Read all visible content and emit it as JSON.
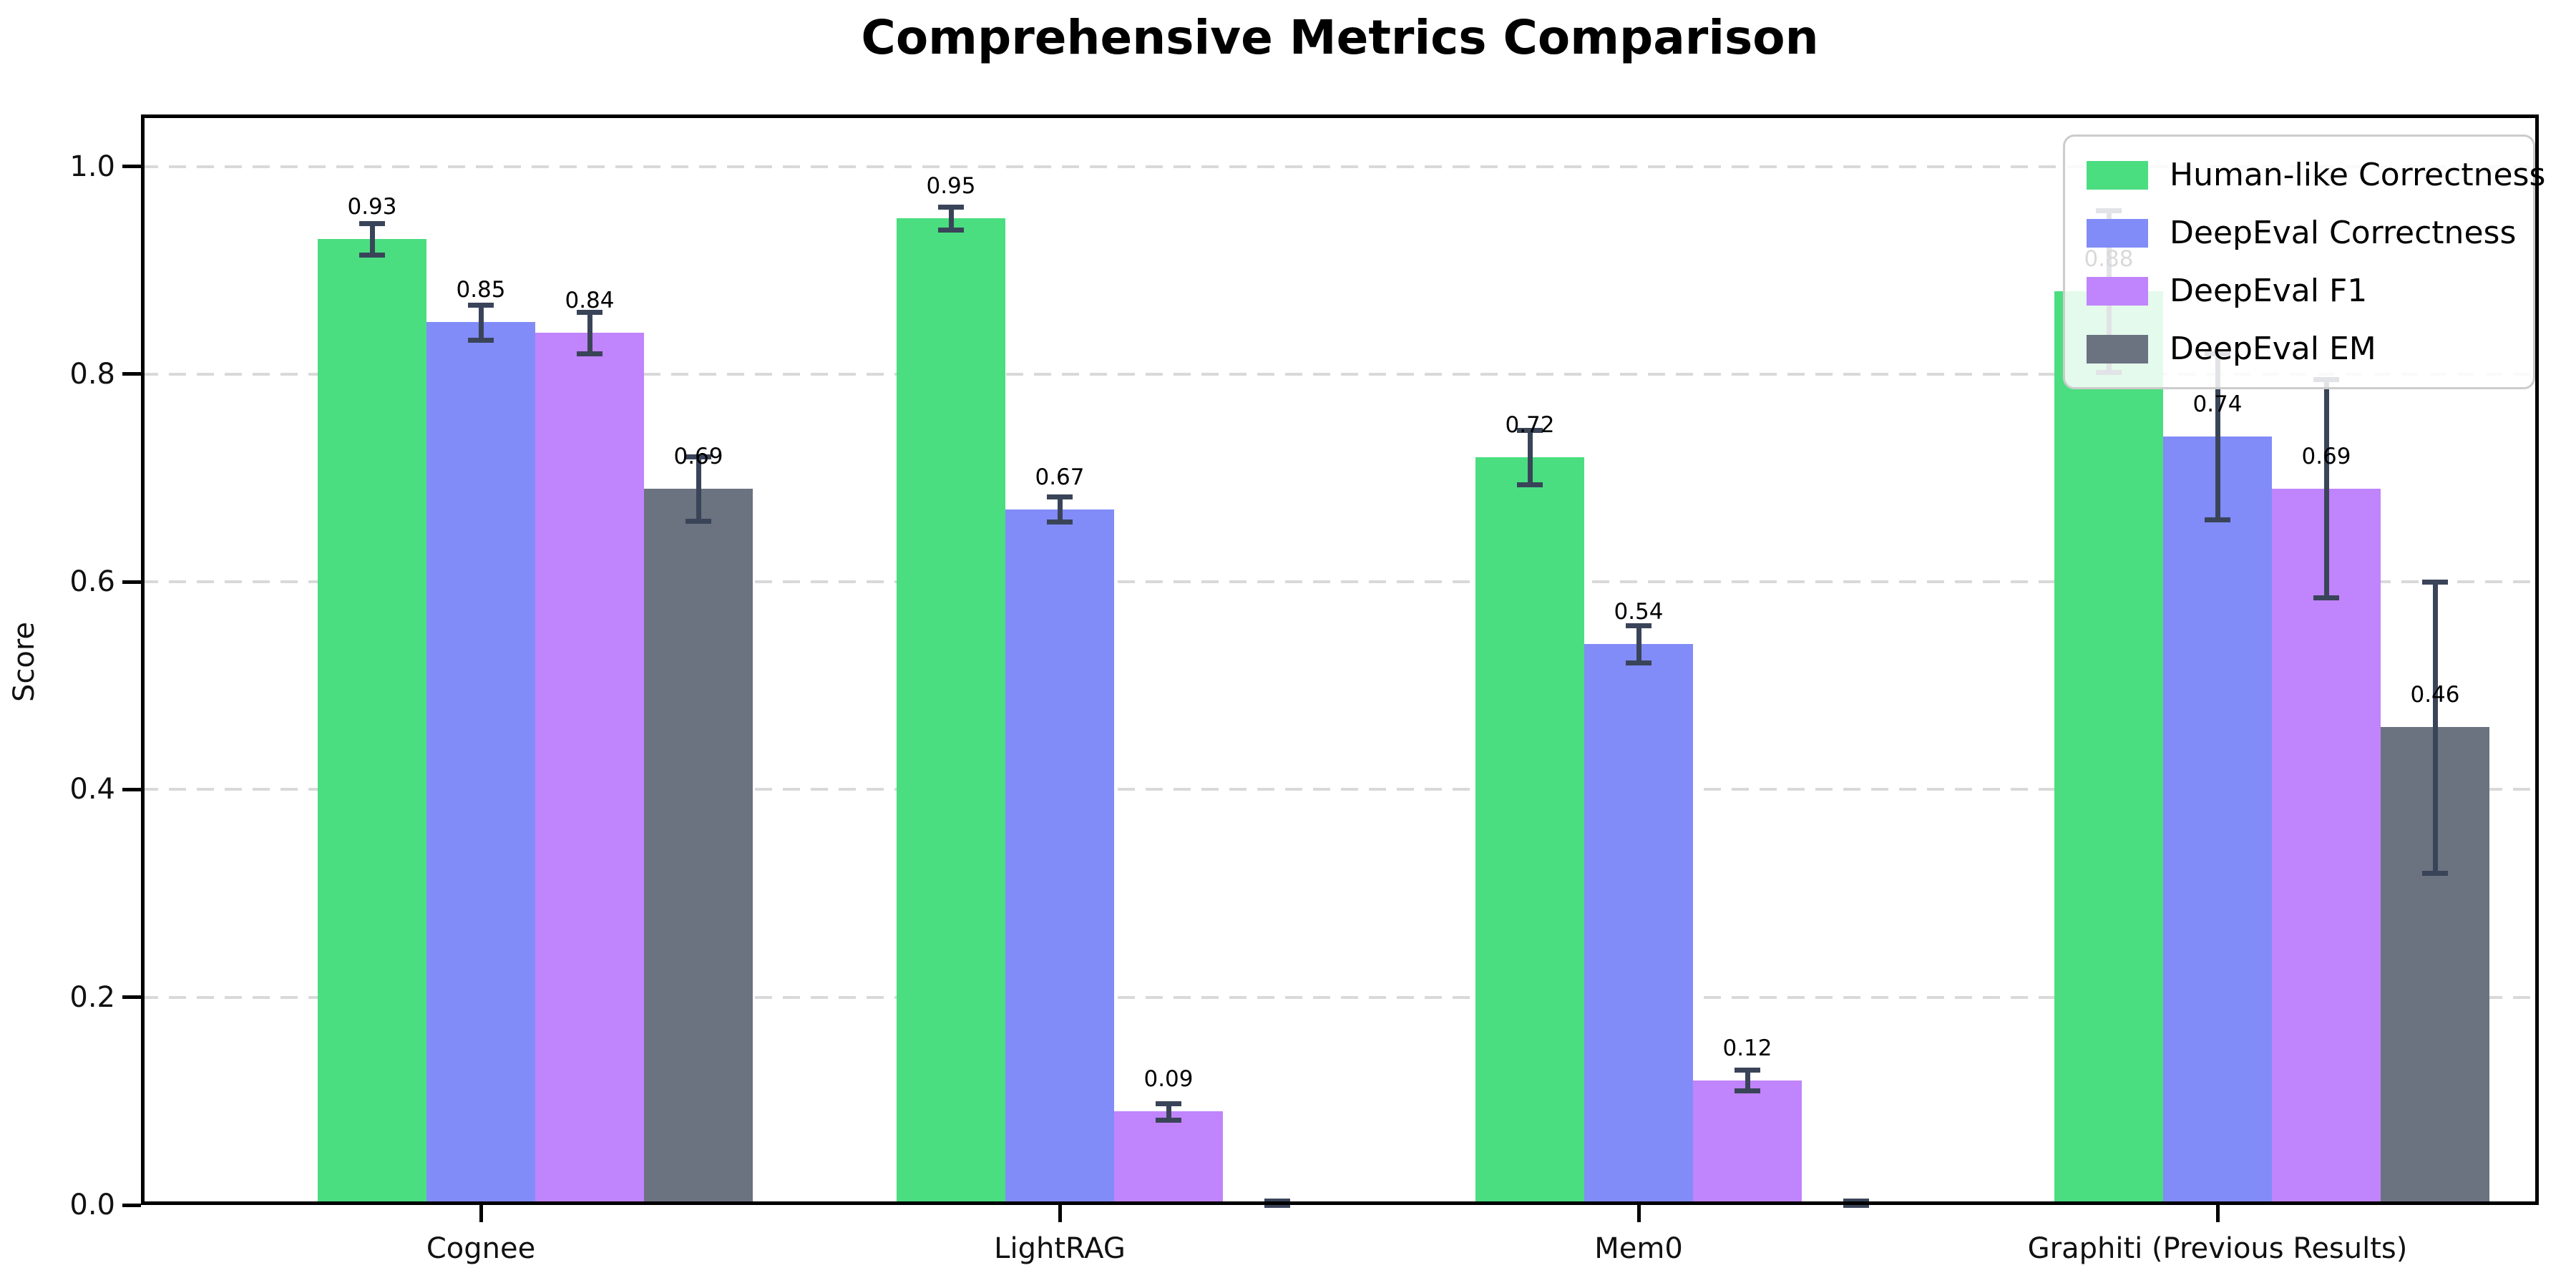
{
  "chart_data": {
    "type": "bar",
    "title": "Comprehensive Metrics Comparison",
    "xlabel": "",
    "ylabel": "Score",
    "ylim": [
      0,
      1.05
    ],
    "ytick_labels": [
      "0.0",
      "0.2",
      "0.4",
      "0.6",
      "0.8",
      "1.0"
    ],
    "ytick_values": [
      0.0,
      0.2,
      0.4,
      0.6,
      0.8,
      1.0
    ],
    "grid": "horizontal-dashed",
    "grid_color": "#d9d9d9",
    "legend_position": "upper-right",
    "error_bar_color": "#3a4459",
    "categories": [
      "Cognee",
      "LightRAG",
      "Mem0",
      "Graphiti (Previous Results)"
    ],
    "series": [
      {
        "name": "Human-like Correctness",
        "color": "#4ade80",
        "values": [
          0.93,
          0.95,
          0.72,
          0.88
        ],
        "errors": [
          0.015,
          0.011,
          0.026,
          0.078
        ],
        "bar_labels": [
          "0.93",
          "0.95",
          "0.72",
          "0.88"
        ]
      },
      {
        "name": "DeepEval Correctness",
        "color": "#818cf8",
        "values": [
          0.85,
          0.67,
          0.54,
          0.74
        ],
        "errors": [
          0.017,
          0.012,
          0.018,
          0.08
        ],
        "bar_labels": [
          "0.85",
          "0.67",
          "0.54",
          "0.74"
        ]
      },
      {
        "name": "DeepEval F1",
        "color": "#c084fc",
        "values": [
          0.84,
          0.09,
          0.12,
          0.69
        ],
        "errors": [
          0.02,
          0.008,
          0.01,
          0.105
        ],
        "bar_labels": [
          "0.84",
          "0.09",
          "0.12",
          "0.69"
        ]
      },
      {
        "name": "DeepEval EM",
        "color": "#6b7280",
        "values": [
          0.69,
          0.0,
          0.0,
          0.46
        ],
        "errors": [
          0.031,
          0.004,
          0.004,
          0.14
        ],
        "bar_labels": [
          "0.69",
          "",
          "",
          "0.46"
        ]
      }
    ]
  }
}
